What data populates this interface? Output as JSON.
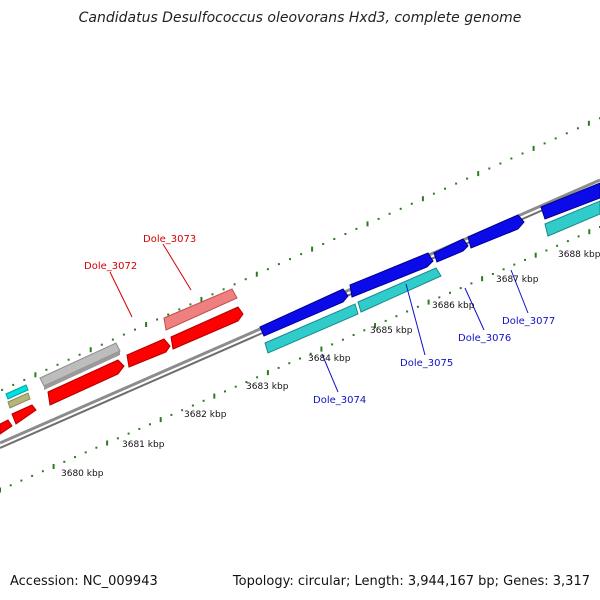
{
  "title": "Candidatus Desulfococcus oleovorans Hxd3, complete genome",
  "footer": {
    "accession": "Accession: NC_009943",
    "summary": "Topology: circular; Length: 3,944,167 bp; Genes: 3,317"
  },
  "colors": {
    "backbone": "#8c8c8c",
    "tick": "#2a7d1e",
    "label_red": "#d40000",
    "label_blue": "#1010c8",
    "red_gene": "#ff0000",
    "pink_gene": "#f08080",
    "gray_gene": "#bdbdbd",
    "blue_gene": "#0b0bea",
    "cyan_gene": "#30cccc",
    "teal_gene": "#00e0e0",
    "olive_gene": "#b5b57a"
  },
  "scale_labels": [
    "3680 kbp",
    "3681 kbp",
    "3682 kbp",
    "3683 kbp",
    "3684 kbp",
    "3685 kbp",
    "3686 kbp",
    "3687 kbp",
    "3688 kbp"
  ],
  "gene_labels": [
    {
      "id": "red1",
      "text": "Dole_3073",
      "color": "red"
    },
    {
      "id": "red2",
      "text": "Dole_3072",
      "color": "red"
    },
    {
      "id": "blue1",
      "text": "Dole_3074",
      "color": "blue"
    },
    {
      "id": "blue2",
      "text": "Dole_3075",
      "color": "blue"
    },
    {
      "id": "blue3",
      "text": "Dole_3076",
      "color": "blue"
    },
    {
      "id": "blue4",
      "text": "Dole_3077",
      "color": "blue"
    }
  ]
}
